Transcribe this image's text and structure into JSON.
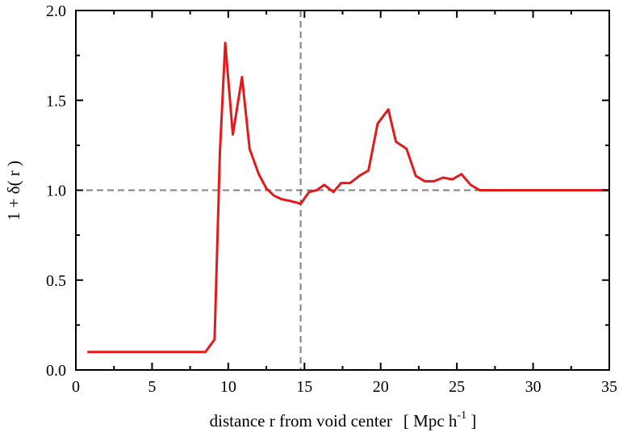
{
  "chart_data": {
    "type": "line",
    "title": "",
    "xlabel_main": "distance r from void center",
    "xlabel_unit_open": "[ Mpc h",
    "xlabel_unit_exp": "-1",
    "xlabel_unit_close": " ]",
    "ylabel": "1 + δ( r )",
    "xlim": [
      0,
      35
    ],
    "ylim": [
      0.0,
      2.0
    ],
    "xticks": [
      0,
      5,
      10,
      15,
      20,
      25,
      30,
      35
    ],
    "xtick_labels": [
      "0",
      "5",
      "10",
      "15",
      "20",
      "25",
      "30",
      "35"
    ],
    "yticks": [
      0.0,
      0.5,
      1.0,
      1.5,
      2.0
    ],
    "ytick_labels": [
      "0.0",
      "0.5",
      "1.0",
      "1.5",
      "2.0"
    ],
    "grid": false,
    "reference_lines": {
      "horizontal_y": 1.0,
      "vertical_x": 14.75
    },
    "series_color": "#e31a1c",
    "reference_line_color": "#808080",
    "series": [
      {
        "x": [
          0.75,
          1.9,
          3.8,
          5.5,
          7.3,
          8.5,
          9.1,
          9.45,
          9.8,
          10.3,
          10.9,
          11.4,
          12.0,
          12.5,
          13.0,
          13.5,
          14.1,
          14.75,
          15.3,
          15.8,
          16.3,
          16.9,
          17.4,
          18.0,
          18.6,
          19.2,
          19.8,
          20.5,
          21.0,
          21.7,
          22.3,
          22.9,
          23.5,
          24.1,
          24.7,
          25.3,
          25.9,
          26.5,
          27.0,
          30.0,
          35.0
        ],
        "y": [
          0.1,
          0.1,
          0.1,
          0.1,
          0.1,
          0.1,
          0.17,
          1.21,
          1.82,
          1.31,
          1.63,
          1.23,
          1.09,
          1.01,
          0.97,
          0.95,
          0.94,
          0.925,
          0.99,
          1.0,
          1.03,
          0.99,
          1.04,
          1.04,
          1.08,
          1.11,
          1.37,
          1.45,
          1.27,
          1.23,
          1.08,
          1.05,
          1.05,
          1.07,
          1.06,
          1.09,
          1.03,
          1.0,
          1.0,
          1.0,
          1.0
        ]
      }
    ]
  }
}
